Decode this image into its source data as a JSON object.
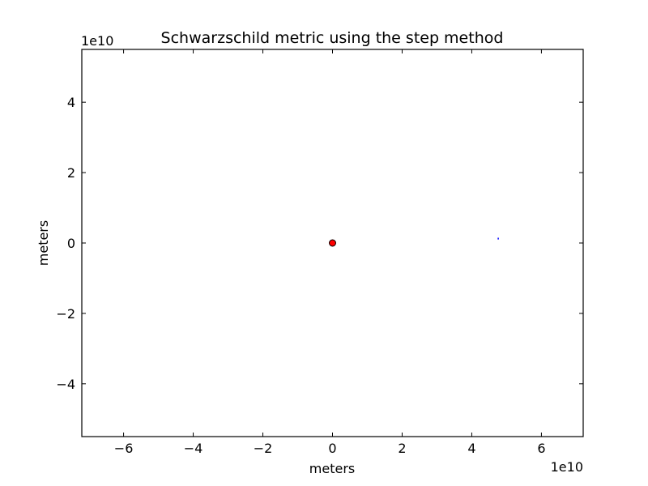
{
  "chart_data": {
    "type": "scatter",
    "title": "Schwarzschild metric using the step method",
    "xlabel": "meters",
    "ylabel": "meters",
    "x_offset_label": "1e10",
    "y_offset_label": "1e10",
    "x_scale": 10000000000.0,
    "y_scale": 10000000000.0,
    "xlim": [
      -7.2,
      7.2
    ],
    "ylim": [
      -5.5,
      5.5
    ],
    "x_ticks": [
      -6,
      -4,
      -2,
      0,
      2,
      4,
      6
    ],
    "x_tick_labels": [
      "−6",
      "−4",
      "−2",
      "0",
      "2",
      "4",
      "6"
    ],
    "y_ticks": [
      -4,
      -2,
      0,
      2,
      4
    ],
    "y_tick_labels": [
      "−4",
      "−2",
      "0",
      "2",
      "4"
    ],
    "grid": false,
    "series": [
      {
        "kind": "marker",
        "x": [
          0
        ],
        "y": [
          0
        ],
        "color": "#ff0000",
        "edgecolor": "#000000"
      },
      {
        "kind": "line",
        "x": [
          4.76,
          4.76
        ],
        "y": [
          0.1,
          0.15
        ],
        "color": "#0000ff"
      }
    ]
  }
}
